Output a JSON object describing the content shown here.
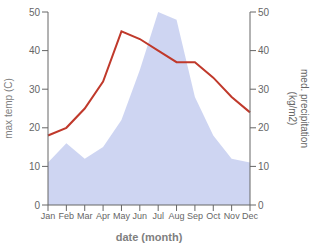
{
  "chart_data": {
    "type": "line",
    "categories": [
      "Jan",
      "Feb",
      "Mar",
      "Apr",
      "May",
      "Jun",
      "Jul",
      "Aug",
      "Sep",
      "Oct",
      "Nov",
      "Dec"
    ],
    "xlabel": "date (month)",
    "ylabel": "max temp (C)",
    "y2label": "med. precipitation\n(kg/m2)",
    "ylim": [
      0,
      50
    ],
    "yticks": [
      0,
      10,
      20,
      30,
      40,
      50
    ],
    "y2lim": [
      0,
      50
    ],
    "y2ticks": [
      0,
      10,
      20,
      30,
      40,
      50
    ],
    "grid": false,
    "series": [
      {
        "type": "area",
        "axis": "y2",
        "color": "#c5cef0",
        "values": [
          11,
          16,
          12,
          15,
          22,
          35,
          50,
          48,
          28,
          18,
          12,
          11
        ]
      },
      {
        "type": "line",
        "color": "#c0392b",
        "values": [
          18,
          20,
          25,
          32,
          45,
          43,
          40,
          37,
          37,
          33,
          28,
          24
        ]
      }
    ]
  }
}
